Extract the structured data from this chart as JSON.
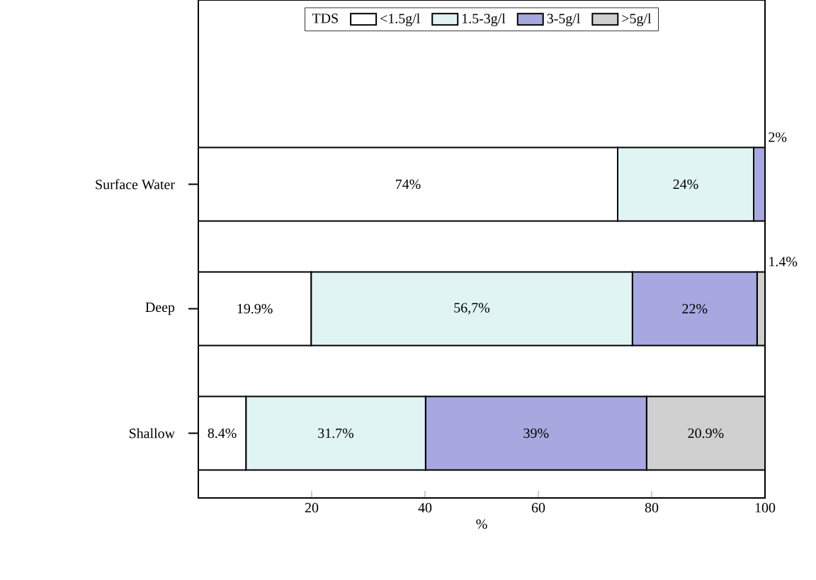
{
  "chart_data": {
    "type": "bar",
    "orientation": "horizontal",
    "stacked": true,
    "xlabel": "%",
    "legend_title": "TDS",
    "categories": [
      "Surface Water",
      "Deep",
      "Shallow"
    ],
    "series": [
      {
        "name": "<1.5g/l",
        "color": "#ffffff",
        "values": [
          74,
          19.9,
          8.4
        ],
        "value_labels": [
          "74%",
          "19.9%",
          "8.4%"
        ]
      },
      {
        "name": "1.5-3g/l",
        "color": "#e0f4f4",
        "values": [
          24,
          56.7,
          31.7
        ],
        "value_labels": [
          "24%",
          "56,7%",
          "31.7%"
        ]
      },
      {
        "name": "3-5g/l",
        "color": "#a8a8e0",
        "values": [
          2,
          22,
          39
        ],
        "value_labels": [
          "2%",
          "22%",
          "39%"
        ]
      },
      {
        "name": ">5g/l",
        "color": "#d0d0d0",
        "values": [
          null,
          1.4,
          20.9
        ],
        "value_labels": [
          null,
          "1.4%",
          "20.9%"
        ]
      }
    ],
    "xlim": [
      0,
      100
    ],
    "xticks": [
      20,
      40,
      60,
      80,
      100
    ],
    "legend": "top",
    "grid": false
  }
}
